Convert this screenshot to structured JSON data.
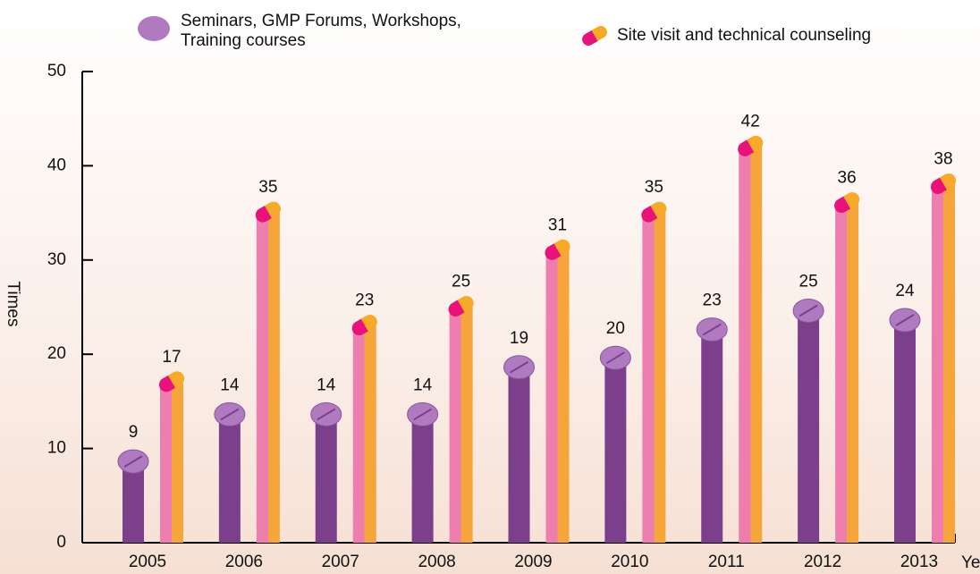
{
  "chart_data": {
    "type": "bar",
    "categories": [
      "2005",
      "2006",
      "2007",
      "2008",
      "2009",
      "2010",
      "2011",
      "2012",
      "2013"
    ],
    "series": [
      {
        "name": "Seminars, GMP Forums, Workshops, Training courses",
        "color": "#7b3f8c",
        "values": [
          9,
          14,
          14,
          14,
          19,
          20,
          23,
          25,
          24
        ]
      },
      {
        "name": "Site visit and technical counseling",
        "color": "#f0a040",
        "values": [
          17,
          35,
          23,
          25,
          31,
          35,
          42,
          36,
          38
        ]
      }
    ],
    "x_label": "Year",
    "y_label": "Times",
    "ylim": [
      0,
      50
    ],
    "yticks": [
      0,
      10,
      20,
      30,
      40,
      50
    ]
  }
}
